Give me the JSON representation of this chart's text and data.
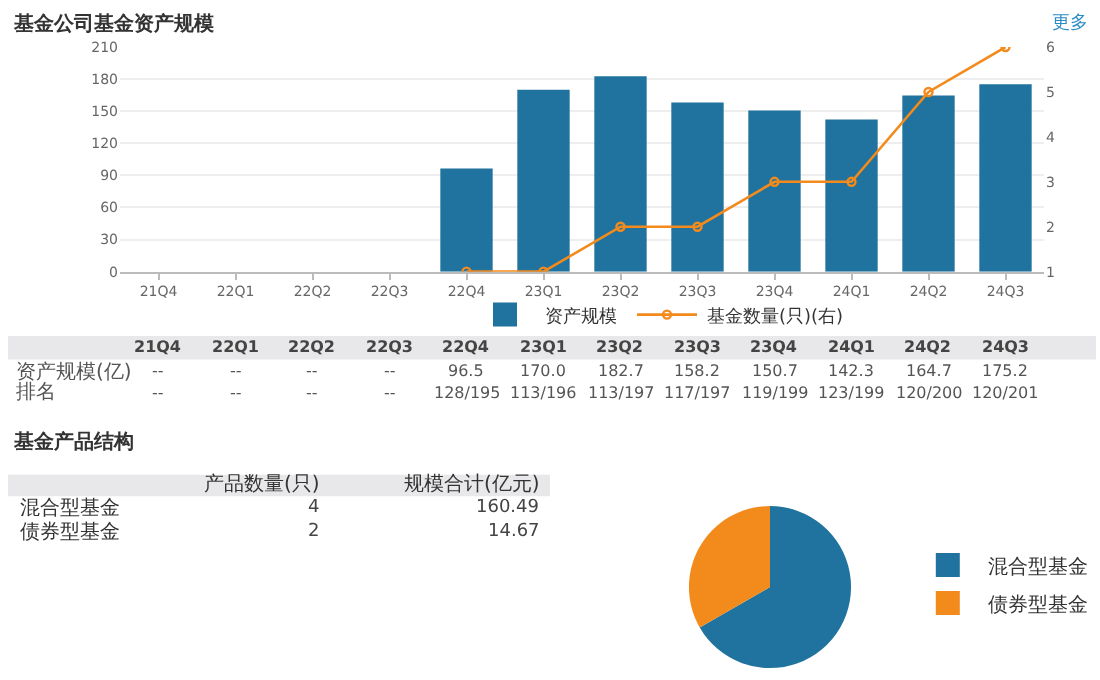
{
  "chart_data": [
    {
      "type": "bar",
      "title": "基金公司基金资产规模",
      "categories": [
        "21Q4",
        "22Q1",
        "22Q2",
        "22Q3",
        "22Q4",
        "23Q1",
        "23Q2",
        "23Q3",
        "23Q4",
        "24Q1",
        "24Q2",
        "24Q3"
      ],
      "series": [
        {
          "name": "资产规模",
          "color": "#21739f",
          "values": [
            null,
            null,
            null,
            null,
            96.5,
            170.0,
            182.7,
            158.2,
            150.7,
            142.3,
            164.7,
            175.2
          ],
          "value_labels": [
            "--",
            "--",
            "--",
            "--",
            "96.5",
            "170.0",
            "182.7",
            "158.2",
            "150.7",
            "142.3",
            "164.7",
            "175.2"
          ]
        },
        {
          "name": "基金数量(只)(右)",
          "type": "line",
          "axis": "y2",
          "color": "#f38a1c",
          "marker": "circle",
          "values": [
            null,
            null,
            null,
            null,
            1,
            1,
            2,
            2,
            3,
            3,
            5,
            6
          ]
        }
      ],
      "ylim": [
        0,
        210
      ],
      "yticks": [
        0,
        30,
        60,
        90,
        120,
        150,
        180,
        210
      ],
      "y2lim": [
        1,
        6
      ],
      "y2ticks": [
        1,
        2,
        3,
        4,
        5,
        6
      ],
      "grid": "y",
      "legend": "bottom",
      "annotations": [
        "更多",
        "资产规模(亿)",
        "排名",
        "--",
        "--",
        "--",
        "--",
        "128/195",
        "113/196",
        "113/197",
        "117/197",
        "119/199",
        "123/199",
        "120/200",
        "120/201"
      ]
    },
    {
      "type": "other",
      "title": "基金产品结构",
      "categories": [
        "混合型基金",
        "债券型基金"
      ],
      "series": [
        {
          "name": "产品数量(只)",
          "values": [
            4,
            2
          ]
        },
        {
          "name": "规模合计(亿元)",
          "values": [
            160.49,
            14.67
          ]
        }
      ],
      "data_labels": true
    },
    {
      "type": "pie",
      "categories": [
        "混合型基金",
        "债券型基金"
      ],
      "values": [
        66.7,
        33.3
      ],
      "colors": [
        "#21739f",
        "#f38a1c"
      ],
      "legend": "right"
    }
  ]
}
